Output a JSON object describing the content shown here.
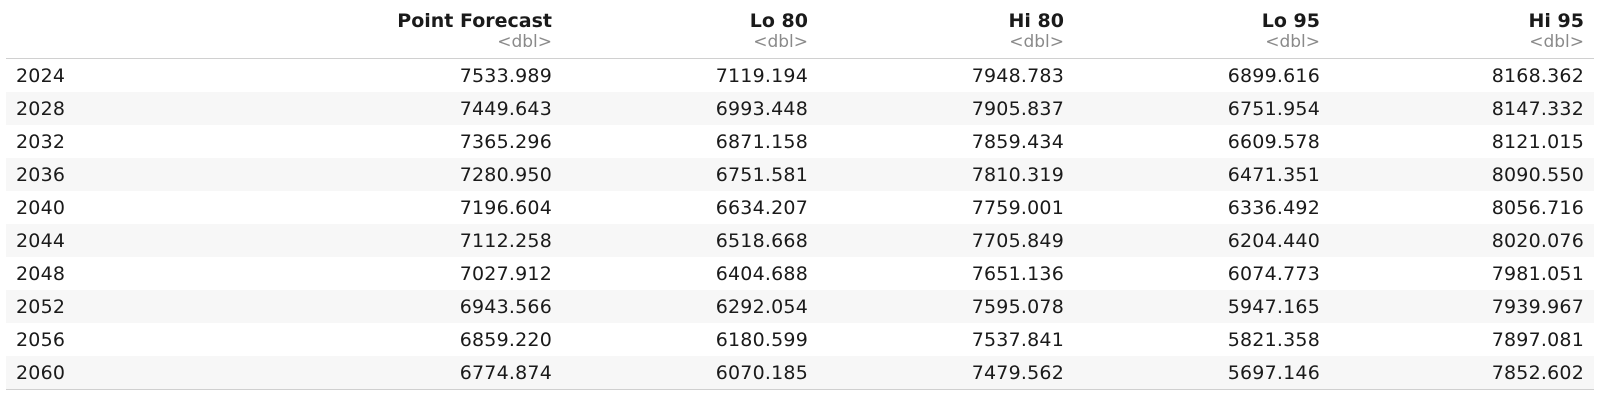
{
  "table": {
    "columns": [
      {
        "name": "",
        "type": ""
      },
      {
        "name": "Point Forecast",
        "type": "<dbl>"
      },
      {
        "name": "Lo 80",
        "type": "<dbl>"
      },
      {
        "name": "Hi 80",
        "type": "<dbl>"
      },
      {
        "name": "Lo 95",
        "type": "<dbl>"
      },
      {
        "name": "Hi 95",
        "type": "<dbl>"
      }
    ],
    "rows": [
      [
        "2024",
        "7533.989",
        "7119.194",
        "7948.783",
        "6899.616",
        "8168.362"
      ],
      [
        "2028",
        "7449.643",
        "6993.448",
        "7905.837",
        "6751.954",
        "8147.332"
      ],
      [
        "2032",
        "7365.296",
        "6871.158",
        "7859.434",
        "6609.578",
        "8121.015"
      ],
      [
        "2036",
        "7280.950",
        "6751.581",
        "7810.319",
        "6471.351",
        "8090.550"
      ],
      [
        "2040",
        "7196.604",
        "6634.207",
        "7759.001",
        "6336.492",
        "8056.716"
      ],
      [
        "2044",
        "7112.258",
        "6518.668",
        "7705.849",
        "6204.440",
        "8020.076"
      ],
      [
        "2048",
        "7027.912",
        "6404.688",
        "7651.136",
        "6074.773",
        "7981.051"
      ],
      [
        "2052",
        "6943.566",
        "6292.054",
        "7595.078",
        "5947.165",
        "7939.967"
      ],
      [
        "2056",
        "6859.220",
        "6180.599",
        "7537.841",
        "5821.358",
        "7897.081"
      ],
      [
        "2060",
        "6774.874",
        "6070.185",
        "7479.562",
        "5697.146",
        "7852.602"
      ]
    ]
  }
}
